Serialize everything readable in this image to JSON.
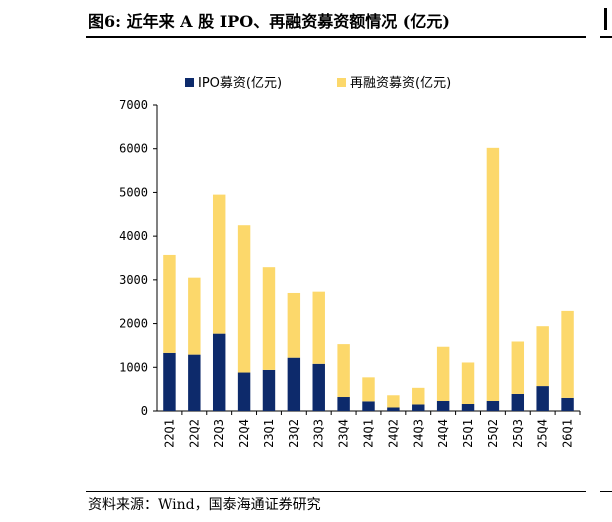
{
  "header": {
    "title": "图6:  近年来 A 股 IPO、再融资募资额情况 (亿元)"
  },
  "footer": {
    "source": "资料来源：Wind，国泰海通证券研究"
  },
  "colors": {
    "ipo": "#0d2a6b",
    "refinancing": "#fcd86b"
  },
  "chart_data": {
    "type": "bar",
    "stacked": true,
    "categories": [
      "22Q1",
      "22Q2",
      "22Q3",
      "22Q4",
      "23Q1",
      "23Q2",
      "23Q3",
      "23Q4",
      "24Q1",
      "24Q2",
      "24Q3",
      "24Q4",
      "25Q1",
      "25Q2",
      "25Q3",
      "25Q4",
      "26Q1"
    ],
    "series": [
      {
        "name": "IPO募资(亿元)",
        "values": [
          1330,
          1290,
          1770,
          880,
          940,
          1220,
          1080,
          320,
          220,
          80,
          150,
          230,
          160,
          230,
          390,
          570,
          300
        ]
      },
      {
        "name": "再融资募资(亿元)",
        "values": [
          2240,
          1760,
          3180,
          3370,
          2350,
          1480,
          1650,
          1210,
          550,
          280,
          380,
          1240,
          950,
          5790,
          1200,
          1370,
          1990
        ]
      }
    ],
    "yticks": [
      "0",
      "1000",
      "2000",
      "3000",
      "4000",
      "5000",
      "6000",
      "7000"
    ],
    "ylim": [
      0,
      7000
    ],
    "legend_position": "top",
    "grid": false
  }
}
